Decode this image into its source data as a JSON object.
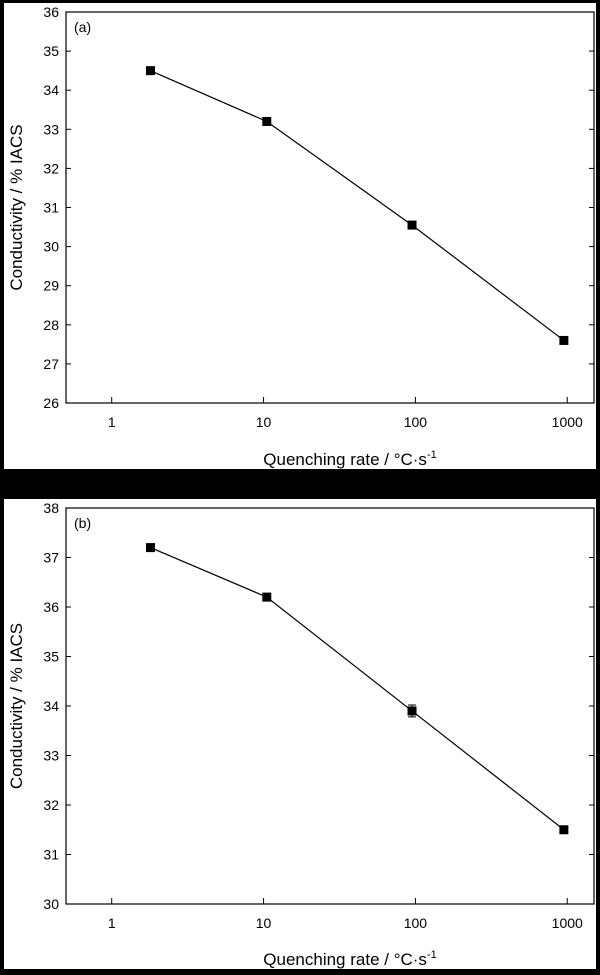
{
  "chart_data": [
    {
      "type": "line",
      "panel_label": "(a)",
      "xlabel": "Quenching rate / °C·s",
      "xlabel_sup": "-1",
      "ylabel": "Conductivity / % IACS",
      "xscale": "log",
      "xlim": [
        0.5,
        1500
      ],
      "xticks": [
        1,
        10,
        100,
        1000
      ],
      "xtick_labels": [
        "1",
        "10",
        "100",
        "1000"
      ],
      "ylim": [
        26,
        36
      ],
      "yticks": [
        26,
        27,
        28,
        29,
        30,
        31,
        32,
        33,
        34,
        35,
        36
      ],
      "ytick_labels": [
        "26",
        "27",
        "28",
        "29",
        "30",
        "31",
        "32",
        "33",
        "34",
        "35",
        "36"
      ],
      "grid": false,
      "series": [
        {
          "x": [
            1.8,
            10.5,
            95,
            950
          ],
          "values": [
            34.5,
            33.2,
            30.55,
            27.6
          ],
          "errors": [
            0,
            0,
            0,
            0
          ],
          "color": "#000000",
          "marker": "square"
        }
      ]
    },
    {
      "type": "line",
      "panel_label": "(b)",
      "xlabel": "Quenching rate / °C·s",
      "xlabel_sup": "-1",
      "ylabel": "Conductivity / % IACS",
      "xscale": "log",
      "xlim": [
        0.5,
        1500
      ],
      "xticks": [
        1,
        10,
        100,
        1000
      ],
      "xtick_labels": [
        "1",
        "10",
        "100",
        "1000"
      ],
      "ylim": [
        30,
        38
      ],
      "yticks": [
        30,
        31,
        32,
        33,
        34,
        35,
        36,
        37,
        38
      ],
      "ytick_labels": [
        "30",
        "31",
        "32",
        "33",
        "34",
        "35",
        "36",
        "37",
        "38"
      ],
      "grid": false,
      "series": [
        {
          "x": [
            1.8,
            10.5,
            95,
            950
          ],
          "values": [
            37.2,
            36.2,
            33.9,
            31.5
          ],
          "errors": [
            0.05,
            0.05,
            0.12,
            0.05
          ],
          "color": "#000000",
          "marker": "square"
        }
      ]
    }
  ]
}
